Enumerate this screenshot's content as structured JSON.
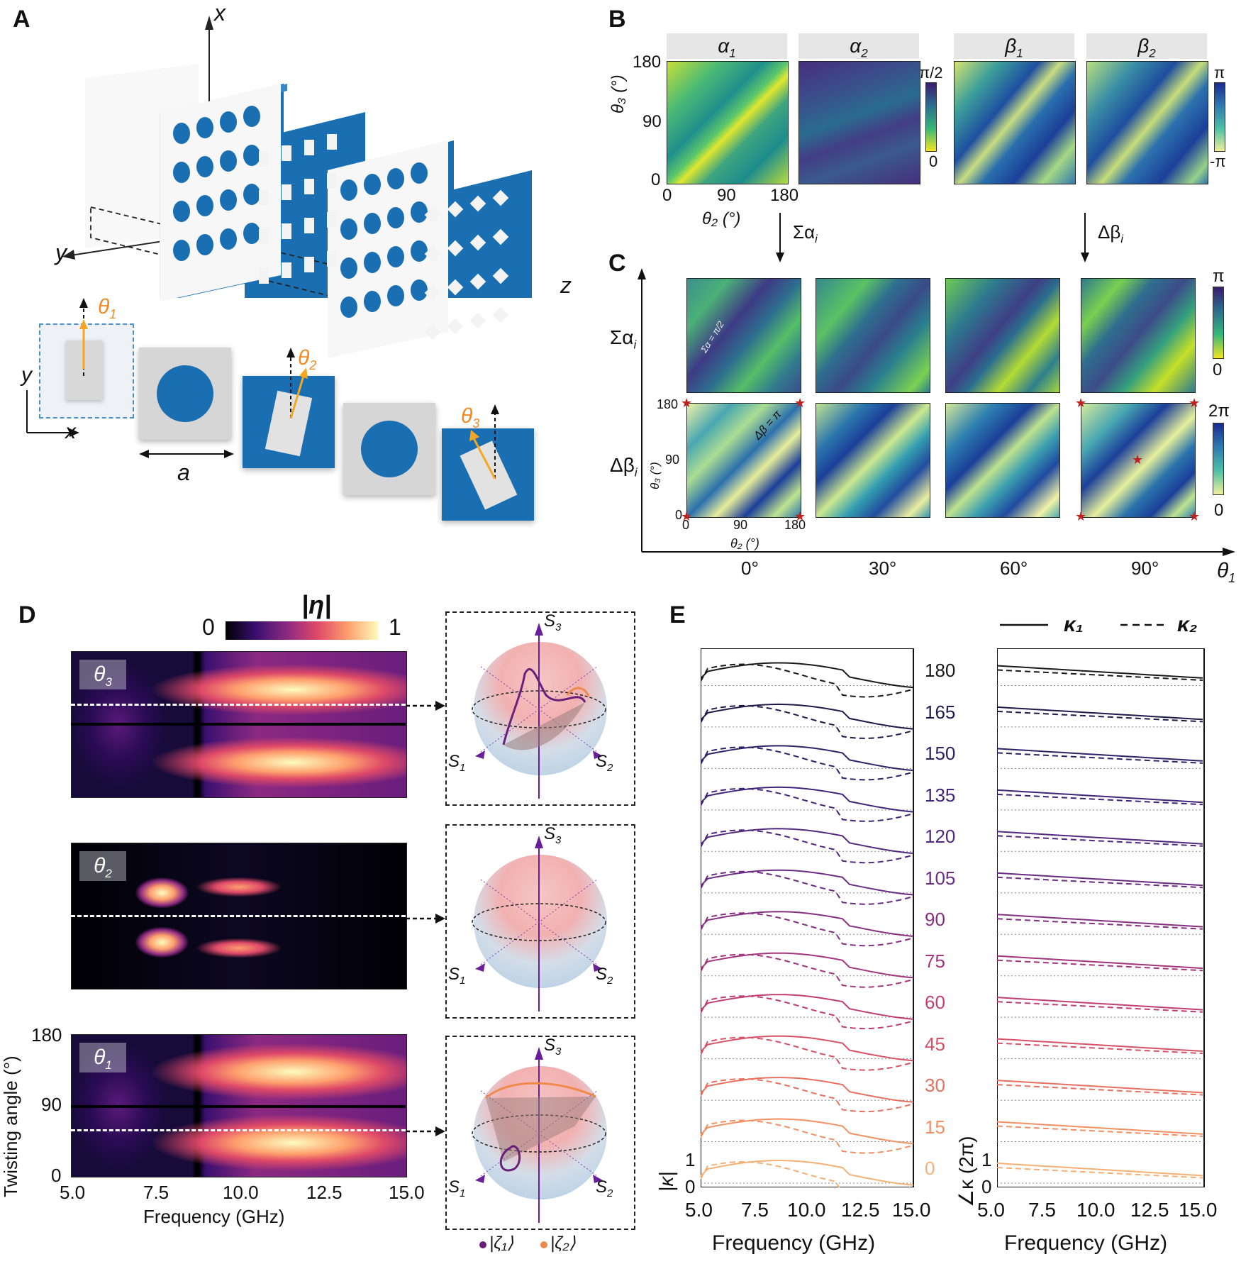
{
  "panel_labels": {
    "a": "A",
    "b": "B",
    "c": "C",
    "d": "D",
    "e": "E"
  },
  "panelA": {
    "axis_x": "x",
    "axis_y": "y",
    "axis_z": "z",
    "theta1": "θ",
    "theta1_sub": "1",
    "theta2": "θ",
    "theta2_sub": "2",
    "theta3": "θ",
    "theta3_sub": "3",
    "cell_axis_y": "y",
    "cell_axis_x": "x",
    "lattice_label": "a"
  },
  "panelB": {
    "headers": [
      {
        "sym": "α",
        "sub": "1"
      },
      {
        "sym": "α",
        "sub": "2"
      },
      {
        "sym": "β",
        "sub": "1"
      },
      {
        "sym": "β",
        "sub": "2"
      }
    ],
    "ylabel": "θ₃ (°)",
    "xlabel": "θ₂ (°)",
    "yticks": [
      "180",
      "90",
      "0"
    ],
    "xticks": [
      "0",
      "90",
      "180"
    ],
    "cbar_alpha": {
      "top": "π/2",
      "bottom": "0"
    },
    "cbar_beta": {
      "top": "π",
      "bottom": "-π"
    },
    "arrow_left": "Σα",
    "arrow_left_sub": "i",
    "arrow_right": "Δβ",
    "arrow_right_sub": "i"
  },
  "panelC": {
    "row1_label": "Σα",
    "row1_sub": "i",
    "row2_label": "Δβ",
    "row2_sub": "i",
    "annot_sum": "Σα = π/2",
    "annot_diff": "Δβ = π",
    "cbar_sum": {
      "top": "π",
      "bottom": "0"
    },
    "cbar_diff": {
      "top": "2π",
      "bottom": "0"
    },
    "yticks": [
      "180",
      "90",
      "0"
    ],
    "ylabel": "θ₃ (°)",
    "xticks": [
      "0",
      "90",
      "180"
    ],
    "xlabel": "θ₂ (°)",
    "columns": [
      "0°",
      "30°",
      "60°",
      "90°"
    ],
    "axis_label": "θ",
    "axis_sub": "1"
  },
  "panelD": {
    "cbar_title": "|η|",
    "cbar_min": "0",
    "cbar_max": "1",
    "maps": [
      {
        "label": "θ",
        "sub": "3"
      },
      {
        "label": "θ",
        "sub": "2"
      },
      {
        "label": "θ",
        "sub": "1"
      }
    ],
    "ylabel": "Twisting angle (°)",
    "yticks": [
      "180",
      "90",
      "0"
    ],
    "xlabel": "Frequency (GHz)",
    "xticks": [
      "5.0",
      "7.5",
      "10.0",
      "12.5",
      "15.0"
    ],
    "stokes": {
      "s1": "S",
      "s1_sub": "1",
      "s2": "S",
      "s2_sub": "2",
      "s3": "S",
      "s3_sub": "3"
    },
    "legend": [
      {
        "label": "|ζ₁⟩",
        "color": "#6a1f7a"
      },
      {
        "label": "|ζ₂⟩",
        "color": "#f08a4b"
      }
    ]
  },
  "panelE": {
    "legend": [
      {
        "label": "κ₁",
        "style": "solid"
      },
      {
        "label": "κ₂",
        "style": "dashed"
      }
    ],
    "angles": [
      "180",
      "165",
      "150",
      "135",
      "120",
      "105",
      "90",
      "75",
      "60",
      "45",
      "30",
      "15",
      "0"
    ],
    "angle_colors": [
      "#1a1a1a",
      "#1e1a4a",
      "#2e2168",
      "#3f2479",
      "#53287f",
      "#6a2b82",
      "#862f82",
      "#a4347c",
      "#c13e71",
      "#d75266",
      "#e8705f",
      "#f39062",
      "#f7b073"
    ],
    "left_ylabel": "|κ|",
    "left_yticks": [
      "1",
      "0"
    ],
    "right_ylabel": "∠κ (2π)",
    "right_yticks": [
      "1",
      "0"
    ],
    "xticks": [
      "5.0",
      "7.5",
      "10.0",
      "12.5",
      "15.0"
    ],
    "xlabel": "Frequency (GHz)"
  }
}
